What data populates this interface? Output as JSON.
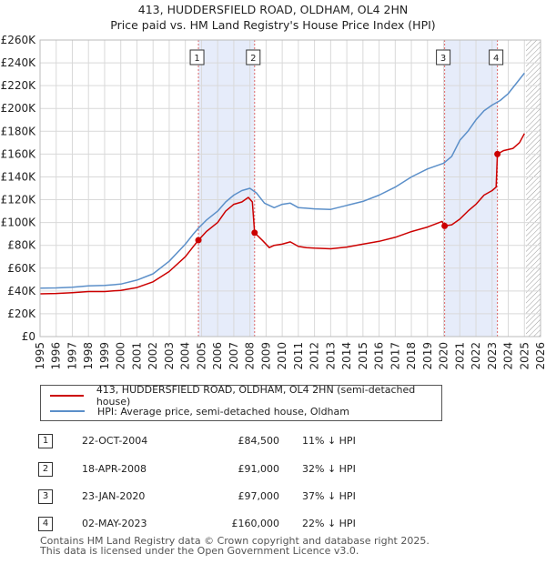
{
  "chart_data": {
    "type": "line",
    "title": "413, HUDDERSFIELD ROAD, OLDHAM, OL4 2HN",
    "subtitle": "Price paid vs. HM Land Registry's House Price Index (HPI)",
    "x_range": [
      1995,
      2026
    ],
    "y_range": [
      0,
      260000
    ],
    "x_ticks": [
      "1995",
      "1996",
      "1997",
      "1998",
      "1999",
      "2000",
      "2001",
      "2002",
      "2003",
      "2004",
      "2005",
      "2006",
      "2007",
      "2008",
      "2009",
      "2010",
      "2011",
      "2012",
      "2013",
      "2014",
      "2015",
      "2016",
      "2017",
      "2018",
      "2019",
      "2020",
      "2021",
      "2022",
      "2023",
      "2024",
      "2025",
      "2026"
    ],
    "y_ticks": [
      {
        "value": 0,
        "label": "£0"
      },
      {
        "value": 20000,
        "label": "£20K"
      },
      {
        "value": 40000,
        "label": "£40K"
      },
      {
        "value": 60000,
        "label": "£60K"
      },
      {
        "value": 80000,
        "label": "£80K"
      },
      {
        "value": 100000,
        "label": "£100K"
      },
      {
        "value": 120000,
        "label": "£120K"
      },
      {
        "value": 140000,
        "label": "£140K"
      },
      {
        "value": 160000,
        "label": "£160K"
      },
      {
        "value": 180000,
        "label": "£180K"
      },
      {
        "value": 200000,
        "label": "£200K"
      },
      {
        "value": 220000,
        "label": "£220K"
      },
      {
        "value": 240000,
        "label": "£240K"
      },
      {
        "value": 260000,
        "label": "£260K"
      }
    ],
    "shaded_ranges": [
      [
        2004.81,
        2008.29
      ],
      [
        2020.06,
        2023.33
      ]
    ],
    "future_hatch_from": 2025.1,
    "series": [
      {
        "name": "413, HUDDERSFIELD ROAD, OLDHAM, OL4 2HN (semi-detached house)",
        "color": "#cc0000",
        "points": [
          [
            1995.0,
            37500
          ],
          [
            1996.0,
            37800
          ],
          [
            1997.0,
            38500
          ],
          [
            1998.0,
            39500
          ],
          [
            1999.0,
            39500
          ],
          [
            2000.0,
            40500
          ],
          [
            2001.0,
            43000
          ],
          [
            2002.0,
            48000
          ],
          [
            2003.0,
            57000
          ],
          [
            2004.0,
            70000
          ],
          [
            2004.5,
            79000
          ],
          [
            2004.81,
            84500
          ],
          [
            2005.3,
            92000
          ],
          [
            2006.0,
            100000
          ],
          [
            2006.5,
            110000
          ],
          [
            2007.0,
            116000
          ],
          [
            2007.5,
            118000
          ],
          [
            2007.9,
            122000
          ],
          [
            2008.15,
            118000
          ],
          [
            2008.29,
            91000
          ],
          [
            2008.8,
            84000
          ],
          [
            2009.2,
            78000
          ],
          [
            2009.5,
            80000
          ],
          [
            2010.0,
            81000
          ],
          [
            2010.5,
            83000
          ],
          [
            2011.0,
            79000
          ],
          [
            2011.5,
            78000
          ],
          [
            2012.0,
            77500
          ],
          [
            2013.0,
            77000
          ],
          [
            2014.0,
            78500
          ],
          [
            2015.0,
            81000
          ],
          [
            2016.0,
            83500
          ],
          [
            2017.0,
            87000
          ],
          [
            2018.0,
            92000
          ],
          [
            2019.0,
            96000
          ],
          [
            2019.9,
            101000
          ],
          [
            2020.06,
            97000
          ],
          [
            2020.5,
            98000
          ],
          [
            2021.0,
            103000
          ],
          [
            2021.5,
            110000
          ],
          [
            2022.0,
            116000
          ],
          [
            2022.5,
            124000
          ],
          [
            2023.0,
            128000
          ],
          [
            2023.25,
            131000
          ],
          [
            2023.33,
            160000
          ],
          [
            2023.7,
            163000
          ],
          [
            2024.3,
            165000
          ],
          [
            2024.7,
            170000
          ],
          [
            2025.0,
            178000
          ]
        ]
      },
      {
        "name": "HPI: Average price, semi-detached house, Oldham",
        "color": "#5b8fc9",
        "points": [
          [
            1995.0,
            42500
          ],
          [
            1996.0,
            42700
          ],
          [
            1997.0,
            43200
          ],
          [
            1998.0,
            44500
          ],
          [
            1999.0,
            44800
          ],
          [
            2000.0,
            46000
          ],
          [
            2001.0,
            49500
          ],
          [
            2002.0,
            55000
          ],
          [
            2003.0,
            66000
          ],
          [
            2004.0,
            81000
          ],
          [
            2004.5,
            90000
          ],
          [
            2004.81,
            95000
          ],
          [
            2005.3,
            102000
          ],
          [
            2006.0,
            110000
          ],
          [
            2006.5,
            118000
          ],
          [
            2007.0,
            124000
          ],
          [
            2007.5,
            128000
          ],
          [
            2008.0,
            130000
          ],
          [
            2008.4,
            126000
          ],
          [
            2008.9,
            117000
          ],
          [
            2009.5,
            113000
          ],
          [
            2010.0,
            116000
          ],
          [
            2010.5,
            117000
          ],
          [
            2011.0,
            113000
          ],
          [
            2011.5,
            112500
          ],
          [
            2012.0,
            112000
          ],
          [
            2013.0,
            111500
          ],
          [
            2014.0,
            115000
          ],
          [
            2015.0,
            118500
          ],
          [
            2016.0,
            124000
          ],
          [
            2017.0,
            131000
          ],
          [
            2018.0,
            140000
          ],
          [
            2019.0,
            147000
          ],
          [
            2020.0,
            152000
          ],
          [
            2020.5,
            158000
          ],
          [
            2021.0,
            172000
          ],
          [
            2021.5,
            180000
          ],
          [
            2022.0,
            190000
          ],
          [
            2022.5,
            198000
          ],
          [
            2023.0,
            203000
          ],
          [
            2023.5,
            207000
          ],
          [
            2024.0,
            213000
          ],
          [
            2024.5,
            222000
          ],
          [
            2025.0,
            231000
          ]
        ]
      }
    ],
    "markers": [
      {
        "label": "1",
        "x": 2004.81,
        "y": 84500
      },
      {
        "label": "2",
        "x": 2008.29,
        "y": 91000
      },
      {
        "label": "3",
        "x": 2020.06,
        "y": 97000
      },
      {
        "label": "4",
        "x": 2023.33,
        "y": 160000
      }
    ]
  },
  "legend": {
    "items": [
      {
        "label": "413, HUDDERSFIELD ROAD, OLDHAM, OL4 2HN (semi-detached house)",
        "color": "#cc0000"
      },
      {
        "label": "HPI: Average price, semi-detached house, Oldham",
        "color": "#5b8fc9"
      }
    ]
  },
  "sales": [
    {
      "num": "1",
      "date": "22-OCT-2004",
      "price": "£84,500",
      "hpi": "11% ↓ HPI"
    },
    {
      "num": "2",
      "date": "18-APR-2008",
      "price": "£91,000",
      "hpi": "32% ↓ HPI"
    },
    {
      "num": "3",
      "date": "23-JAN-2020",
      "price": "£97,000",
      "hpi": "37% ↓ HPI"
    },
    {
      "num": "4",
      "date": "02-MAY-2023",
      "price": "£160,000",
      "hpi": "22% ↓ HPI"
    }
  ],
  "footer": {
    "line1": "Contains HM Land Registry data © Crown copyright and database right 2025.",
    "line2": "This data is licensed under the Open Government Licence v3.0."
  }
}
